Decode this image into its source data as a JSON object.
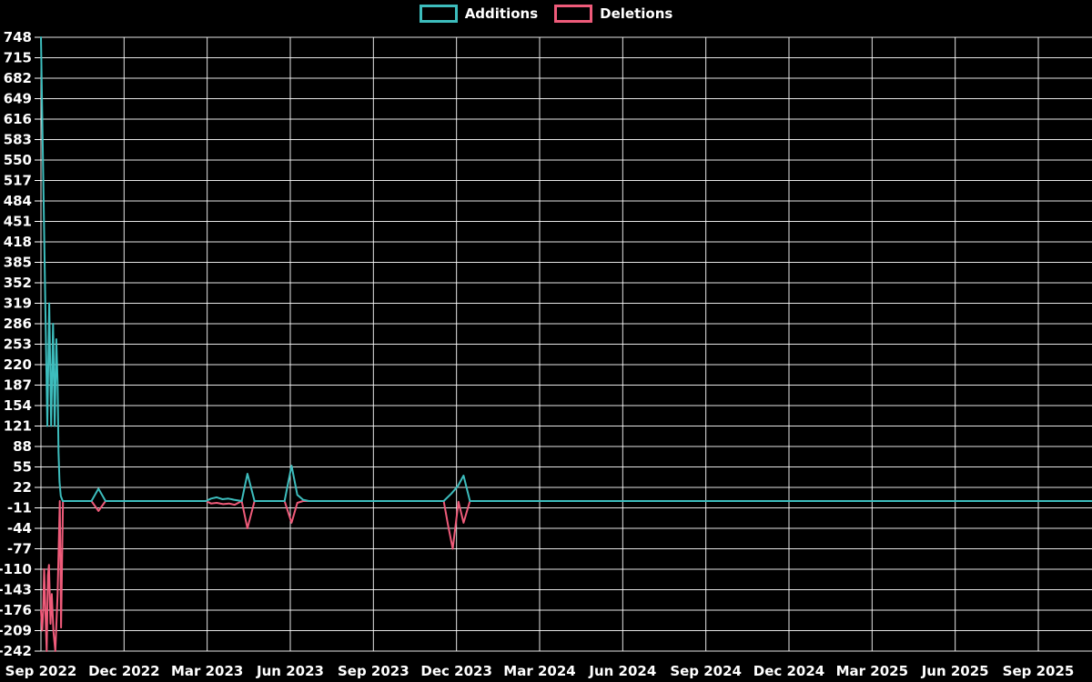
{
  "chart_data": {
    "type": "line",
    "title": "",
    "background_color": "#000000",
    "grid": true,
    "legend_position": "top-center",
    "x_tick_labels": [
      "Sep 2022",
      "Dec 2022",
      "Mar 2023",
      "Jun 2023",
      "Sep 2023",
      "Dec 2023",
      "Mar 2024",
      "Jun 2024",
      "Sep 2024",
      "Dec 2024",
      "Mar 2025",
      "Jun 2025",
      "Sep 2025"
    ],
    "x_weeks_per_tick": 13,
    "x_total_weeks": 164.5,
    "y_ticks": [
      748,
      715,
      682,
      649,
      616,
      583,
      550,
      517,
      484,
      451,
      418,
      385,
      352,
      319,
      286,
      253,
      220,
      187,
      154,
      121,
      88,
      55,
      22,
      -11,
      -44,
      -77,
      -110,
      -143,
      -176,
      -209,
      -242
    ],
    "ylim": [
      -242,
      748
    ],
    "grid_color": "#ffffff",
    "label_color": "#ffffff",
    "series": [
      {
        "name": "Additions",
        "color": "#3dbdbd",
        "points": [
          [
            0,
            748
          ],
          [
            1,
            121
          ],
          [
            1.3,
            319
          ],
          [
            1.6,
            121
          ],
          [
            1.9,
            286
          ],
          [
            2.15,
            121
          ],
          [
            2.4,
            261
          ],
          [
            2.6,
            192
          ],
          [
            2.75,
            79
          ],
          [
            2.9,
            31
          ],
          [
            3.1,
            8
          ],
          [
            3.4,
            0
          ],
          [
            7.9,
            0
          ],
          [
            9,
            20
          ],
          [
            10.1,
            0
          ],
          [
            25.8,
            0
          ],
          [
            26.6,
            4
          ],
          [
            27.5,
            6
          ],
          [
            28.4,
            3
          ],
          [
            29.3,
            4
          ],
          [
            30.2,
            2
          ],
          [
            31.4,
            0
          ],
          [
            32.3,
            44
          ],
          [
            33.4,
            0
          ],
          [
            38.1,
            0
          ],
          [
            39.2,
            57
          ],
          [
            40.1,
            10
          ],
          [
            41,
            2
          ],
          [
            41.9,
            0
          ],
          [
            63,
            0
          ],
          [
            64.2,
            12
          ],
          [
            65.2,
            24
          ],
          [
            66.1,
            41
          ],
          [
            67.1,
            0
          ],
          [
            164.5,
            0
          ]
        ]
      },
      {
        "name": "Deletions",
        "color": "#ef5b7a",
        "points": [
          [
            0,
            -176
          ],
          [
            0.2,
            -209
          ],
          [
            0.35,
            -176
          ],
          [
            0.5,
            -110
          ],
          [
            0.75,
            -195
          ],
          [
            0.9,
            -242
          ],
          [
            1.1,
            -120
          ],
          [
            1.25,
            -103
          ],
          [
            1.5,
            -198
          ],
          [
            1.7,
            -150
          ],
          [
            1.95,
            -210
          ],
          [
            2.25,
            -242
          ],
          [
            2.6,
            -150
          ],
          [
            2.95,
            0
          ],
          [
            3.15,
            -204
          ],
          [
            3.45,
            0
          ],
          [
            7.9,
            0
          ],
          [
            9,
            -16
          ],
          [
            10.1,
            0
          ],
          [
            25.8,
            0
          ],
          [
            26.6,
            -4
          ],
          [
            27.5,
            -3
          ],
          [
            28.5,
            -5
          ],
          [
            29.4,
            -4
          ],
          [
            30.3,
            -6
          ],
          [
            31.4,
            0
          ],
          [
            32.3,
            -44
          ],
          [
            33.4,
            0
          ],
          [
            38.1,
            0
          ],
          [
            39.2,
            -35
          ],
          [
            40.1,
            -3
          ],
          [
            41,
            0
          ],
          [
            63,
            0
          ],
          [
            63.7,
            -40
          ],
          [
            64.4,
            -77
          ],
          [
            65.3,
            -1
          ],
          [
            66.1,
            -35
          ],
          [
            67.1,
            0
          ],
          [
            164.5,
            0
          ]
        ]
      }
    ]
  }
}
